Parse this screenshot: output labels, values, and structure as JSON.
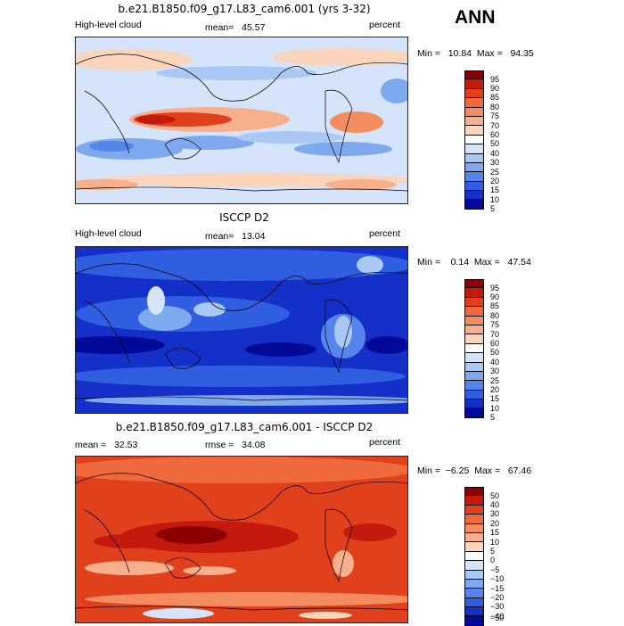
{
  "season": "ANN",
  "panels": [
    {
      "title": "b.e21.B1850.f09_g17.L83_cam6.001 (yrs 3-32)",
      "left_label": "High-level cloud",
      "center_label": "mean=   45.57",
      "right_label": "percent",
      "minmax": "Min =   10.84  Max =   94.35",
      "colorbar": {
        "labels": [
          "95",
          "90",
          "85",
          "80",
          "75",
          "70",
          "60",
          "50",
          "40",
          "30",
          "25",
          "20",
          "15",
          "10",
          "5"
        ],
        "colors": [
          "#8b0000",
          "#c41a0d",
          "#e0401c",
          "#ee6a3c",
          "#f38d60",
          "#f7b08b",
          "#fbd4bc",
          "#ffffff",
          "#d5e4fb",
          "#aac8f4",
          "#7fa9ef",
          "#5585ea",
          "#2f5fe0",
          "#1430c8",
          "#000a96"
        ]
      }
    },
    {
      "title": "ISCCP D2",
      "left_label": "High-level cloud",
      "center_label": "mean=   13.04",
      "right_label": "percent",
      "minmax": "Min =    0.14  Max =   47.54",
      "colorbar": {
        "labels": [
          "95",
          "90",
          "85",
          "80",
          "75",
          "70",
          "60",
          "50",
          "40",
          "30",
          "25",
          "20",
          "15",
          "10",
          "5"
        ],
        "colors": [
          "#8b0000",
          "#c41a0d",
          "#e0401c",
          "#ee6a3c",
          "#f38d60",
          "#f7b08b",
          "#fbd4bc",
          "#ffffff",
          "#d5e4fb",
          "#aac8f4",
          "#7fa9ef",
          "#5585ea",
          "#2f5fe0",
          "#1430c8",
          "#000a96"
        ]
      }
    },
    {
      "title": "b.e21.B1850.f09_g17.L83_cam6.001 - ISCCP D2",
      "left_label": "mean =   32.53",
      "center_label": "rmse =   34.08",
      "right_label": "percent",
      "minmax": "Min =  −6.25  Max =   67.46",
      "colorbar": {
        "labels": [
          "50",
          "40",
          "30",
          "20",
          "15",
          "10",
          "5",
          "0",
          "−5",
          "−10",
          "−15",
          "−20",
          "−30",
          "−40",
          "−50"
        ],
        "colors": [
          "#8b0000",
          "#c41a0d",
          "#e0401c",
          "#ee6a3c",
          "#f38d60",
          "#f7b08b",
          "#fbd4bc",
          "#ffffff",
          "#d5e4fb",
          "#aac8f4",
          "#7fa9ef",
          "#5585ea",
          "#2f5fe0",
          "#1430c8",
          "#000a96"
        ]
      }
    }
  ]
}
